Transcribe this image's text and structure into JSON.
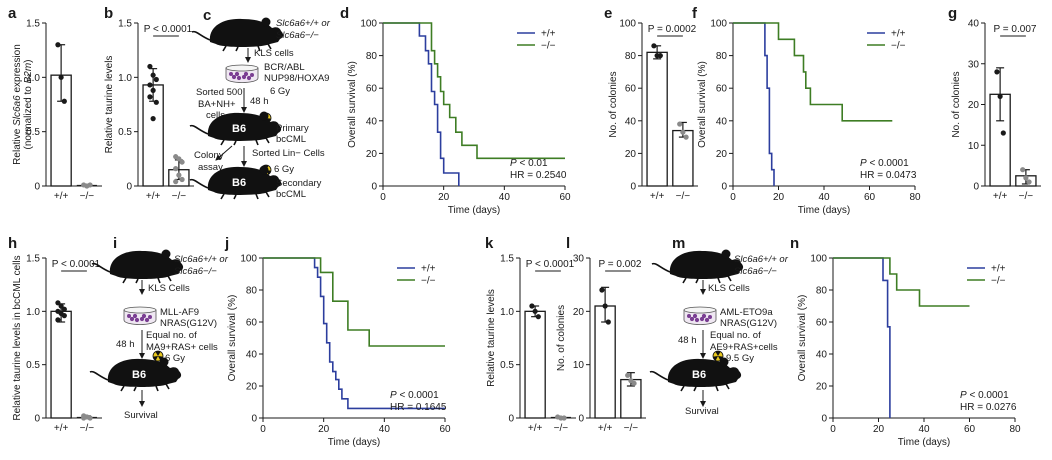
{
  "colors": {
    "wt": "#2c3e9e",
    "ko": "#3e7d24",
    "bar": "#1a1a1a",
    "dot_ko": "#8a8a8a",
    "dish": "#7a3e92"
  },
  "chart_data": [
    {
      "id": "a",
      "type": "bar",
      "panel_label": "a",
      "categories": [
        "+/+",
        "−/−"
      ],
      "values": [
        1.02,
        0.0
      ],
      "points": [
        [
          1.3,
          1.0,
          0.78
        ],
        [
          0.01,
          0.0,
          0.01
        ]
      ],
      "error": [
        [
          0.78,
          1.3
        ],
        [
          0,
          0.01
        ]
      ],
      "ylabel_pre": "Relative ",
      "ylabel_gene": "Slc6a6",
      "ylabel_post": " expression",
      "ylabel2_pre": "(normalized to ",
      "ylabel2_gene": "B2m",
      "ylabel2_post": ")",
      "ylim": [
        0,
        1.5
      ],
      "yticks": [
        "0",
        "0.5",
        "1.0",
        "1.5"
      ],
      "yticks_v": [
        0,
        0.5,
        1.0,
        1.5
      ]
    },
    {
      "id": "b",
      "type": "bar",
      "panel_label": "b",
      "categories": [
        "+/+",
        "−/−"
      ],
      "values": [
        0.93,
        0.15
      ],
      "points": [
        [
          1.1,
          1.02,
          0.98,
          0.93,
          0.88,
          0.77,
          0.82,
          0.62
        ],
        [
          0.27,
          0.25,
          0.22,
          0.16,
          0.1,
          0.06,
          0.04
        ]
      ],
      "error": [
        [
          0.78,
          1.08
        ],
        [
          0.06,
          0.24
        ]
      ],
      "ylabel": "Relative taurine  levels",
      "pvalue": "P < 0.0001",
      "ylim": [
        0,
        1.5
      ],
      "yticks": [
        "0",
        "0.5",
        "1.0",
        "1.5"
      ],
      "yticks_v": [
        0,
        0.5,
        1.0,
        1.5
      ]
    },
    {
      "id": "d",
      "type": "line",
      "panel_label": "d",
      "xlabel": "Time (days)",
      "ylabel": "Overall survival (%)",
      "xlim": [
        0,
        60
      ],
      "ylim": [
        0,
        100
      ],
      "xticks": [
        "0",
        "20",
        "40",
        "60"
      ],
      "xticks_v": [
        0,
        20,
        40,
        60
      ],
      "yticks": [
        "0",
        "20",
        "40",
        "60",
        "80",
        "100"
      ],
      "yticks_v": [
        0,
        20,
        40,
        60,
        80,
        100
      ],
      "series": [
        {
          "name": "+/+",
          "steps": [
            [
              0,
              100
            ],
            [
              12,
              100
            ],
            [
              12,
              92
            ],
            [
              14,
              92
            ],
            [
              14,
              83
            ],
            [
              15,
              83
            ],
            [
              15,
              75
            ],
            [
              16,
              75
            ],
            [
              16,
              58
            ],
            [
              17,
              58
            ],
            [
              17,
              50
            ],
            [
              18,
              50
            ],
            [
              18,
              33
            ],
            [
              19,
              33
            ],
            [
              19,
              17
            ],
            [
              20,
              17
            ],
            [
              20,
              8
            ],
            [
              25,
              8
            ],
            [
              25,
              0
            ]
          ]
        },
        {
          "name": "−/−",
          "steps": [
            [
              0,
              100
            ],
            [
              16,
              100
            ],
            [
              16,
              83
            ],
            [
              17,
              83
            ],
            [
              17,
              75
            ],
            [
              18,
              75
            ],
            [
              18,
              67
            ],
            [
              19,
              67
            ],
            [
              19,
              58
            ],
            [
              20,
              58
            ],
            [
              20,
              50
            ],
            [
              22,
              50
            ],
            [
              22,
              42
            ],
            [
              24,
              42
            ],
            [
              24,
              33
            ],
            [
              26,
              33
            ],
            [
              26,
              25
            ],
            [
              31,
              25
            ],
            [
              31,
              17
            ],
            [
              60,
              17
            ]
          ]
        }
      ],
      "legend": [
        "+/+",
        "−/−"
      ],
      "annot1": "P < 0.01",
      "annot2": "HR = 0.2540"
    },
    {
      "id": "e",
      "type": "bar",
      "panel_label": "e",
      "categories": [
        "+/+",
        "−/−"
      ],
      "values": [
        82,
        34
      ],
      "points": [
        [
          86,
          80,
          80
        ],
        [
          38,
          33,
          30
        ]
      ],
      "error": [
        [
          78,
          86
        ],
        [
          30,
          39
        ]
      ],
      "ylabel": "No. of colonies",
      "pvalue": "P = 0.0002",
      "ylim": [
        0,
        100
      ],
      "yticks": [
        "0",
        "20",
        "40",
        "60",
        "80",
        "100"
      ],
      "yticks_v": [
        0,
        20,
        40,
        60,
        80,
        100
      ]
    },
    {
      "id": "f",
      "type": "line",
      "panel_label": "f",
      "xlabel": "Time (days)",
      "ylabel": "Overall survival (%)",
      "xlim": [
        0,
        80
      ],
      "ylim": [
        0,
        100
      ],
      "xticks": [
        "0",
        "20",
        "40",
        "60",
        "80"
      ],
      "xticks_v": [
        0,
        20,
        40,
        60,
        80
      ],
      "yticks": [
        "0",
        "20",
        "40",
        "60",
        "80",
        "100"
      ],
      "yticks_v": [
        0,
        20,
        40,
        60,
        80,
        100
      ],
      "series": [
        {
          "name": "+/+",
          "steps": [
            [
              0,
              100
            ],
            [
              14,
              100
            ],
            [
              14,
              80
            ],
            [
              15,
              80
            ],
            [
              15,
              60
            ],
            [
              16,
              60
            ],
            [
              16,
              20
            ],
            [
              17,
              20
            ],
            [
              17,
              10
            ],
            [
              18,
              10
            ],
            [
              18,
              0
            ]
          ]
        },
        {
          "name": "−/−",
          "steps": [
            [
              0,
              100
            ],
            [
              20,
              100
            ],
            [
              20,
              90
            ],
            [
              27,
              90
            ],
            [
              27,
              80
            ],
            [
              31,
              80
            ],
            [
              31,
              70
            ],
            [
              32,
              70
            ],
            [
              32,
              60
            ],
            [
              34,
              60
            ],
            [
              34,
              50
            ],
            [
              48,
              50
            ],
            [
              48,
              40
            ],
            [
              70,
              40
            ]
          ]
        }
      ],
      "legend": [
        "+/+",
        "−/−"
      ],
      "annot1": "P < 0.0001",
      "annot2": "HR = 0.0473"
    },
    {
      "id": "g",
      "type": "bar",
      "panel_label": "g",
      "categories": [
        "+/+",
        "−/−"
      ],
      "values": [
        22.5,
        2.5
      ],
      "points": [
        [
          28,
          22,
          13
        ],
        [
          4,
          2,
          1
        ]
      ],
      "error": [
        [
          16,
          29
        ],
        [
          0.5,
          4
        ]
      ],
      "ylabel": "No. of colonies",
      "pvalue": "P = 0.007",
      "ylim": [
        0,
        40
      ],
      "yticks": [
        "0",
        "10",
        "20",
        "30",
        "40"
      ],
      "yticks_v": [
        0,
        10,
        20,
        30,
        40
      ]
    },
    {
      "id": "h",
      "type": "bar",
      "panel_label": "h",
      "categories": [
        "+/+",
        "−/−"
      ],
      "values": [
        1.0,
        0.0
      ],
      "points": [
        [
          1.08,
          1.05,
          1.02,
          1.0,
          0.98,
          0.96,
          0.92
        ],
        [
          0.02,
          0.01,
          0.0,
          0.0,
          0.01
        ]
      ],
      "error": [
        [
          0.9,
          1.07
        ],
        [
          0,
          0.02
        ]
      ],
      "ylabel": "Relative taurine  levels in bcCML cells",
      "pvalue": "P < 0.0001",
      "ylim": [
        0,
        1.5
      ],
      "yticks": [
        "0",
        "0.5",
        "1.0",
        "1.5"
      ],
      "yticks_v": [
        0,
        0.5,
        1.0,
        1.5
      ]
    },
    {
      "id": "j",
      "type": "line",
      "panel_label": "j",
      "xlabel": "Time (days)",
      "ylabel": "Overall survival (%)",
      "xlim": [
        0,
        60
      ],
      "ylim": [
        0,
        100
      ],
      "xticks": [
        "0",
        "20",
        "40",
        "60"
      ],
      "xticks_v": [
        0,
        20,
        40,
        60
      ],
      "yticks": [
        "0",
        "20",
        "40",
        "60",
        "80",
        "100"
      ],
      "yticks_v": [
        0,
        20,
        40,
        60,
        80,
        100
      ],
      "series": [
        {
          "name": "+/+",
          "steps": [
            [
              0,
              100
            ],
            [
              17,
              100
            ],
            [
              17,
              94
            ],
            [
              18,
              94
            ],
            [
              18,
              88
            ],
            [
              19,
              88
            ],
            [
              19,
              76
            ],
            [
              20,
              76
            ],
            [
              20,
              59
            ],
            [
              21,
              59
            ],
            [
              21,
              47
            ],
            [
              22,
              47
            ],
            [
              22,
              35
            ],
            [
              23,
              35
            ],
            [
              23,
              29
            ],
            [
              24,
              29
            ],
            [
              24,
              24
            ],
            [
              25,
              24
            ],
            [
              25,
              18
            ],
            [
              26,
              18
            ],
            [
              26,
              12
            ],
            [
              28,
              12
            ],
            [
              28,
              6
            ],
            [
              60,
              6
            ]
          ]
        },
        {
          "name": "−/−",
          "steps": [
            [
              0,
              100
            ],
            [
              19,
              100
            ],
            [
              19,
              91
            ],
            [
              23,
              91
            ],
            [
              23,
              73
            ],
            [
              28,
              73
            ],
            [
              28,
              55
            ],
            [
              35,
              55
            ],
            [
              35,
              45
            ],
            [
              60,
              45
            ]
          ]
        }
      ],
      "legend": [
        "+/+",
        "−/−"
      ],
      "annot1": "P < 0.0001",
      "annot2": "HR = 0.1645"
    },
    {
      "id": "k",
      "type": "bar",
      "panel_label": "k",
      "categories": [
        "+/+",
        "−/−"
      ],
      "values": [
        1.0,
        0.0
      ],
      "points": [
        [
          1.05,
          1.0,
          0.95
        ],
        [
          0.01,
          0.0,
          0.0
        ]
      ],
      "error": [
        [
          0.95,
          1.05
        ],
        [
          0,
          0.01
        ]
      ],
      "ylabel": "Relative taurine  levels",
      "pvalue": "P < 0.0001",
      "ylim": [
        0,
        1.5
      ],
      "yticks": [
        "0",
        "0.5",
        "1.0",
        "1.5"
      ],
      "yticks_v": [
        0,
        0.5,
        1.0,
        1.5
      ]
    },
    {
      "id": "l",
      "type": "bar",
      "panel_label": "l",
      "categories": [
        "+/+",
        "−/−"
      ],
      "values": [
        21,
        7.2
      ],
      "points": [
        [
          24,
          21,
          18
        ],
        [
          8,
          7,
          6.5
        ]
      ],
      "error": [
        [
          18,
          24.5
        ],
        [
          6,
          8.5
        ]
      ],
      "ylabel": "No. of colonies",
      "pvalue": "P = 0.002",
      "ylim": [
        0,
        30
      ],
      "yticks": [
        "0",
        "10",
        "20",
        "30"
      ],
      "yticks_v": [
        0,
        10,
        20,
        30
      ]
    },
    {
      "id": "n",
      "type": "line",
      "panel_label": "n",
      "xlabel": "Time (days)",
      "ylabel": "Overall survival (%)",
      "xlim": [
        0,
        80
      ],
      "ylim": [
        0,
        100
      ],
      "xticks": [
        "0",
        "20",
        "40",
        "60",
        "80"
      ],
      "xticks_v": [
        0,
        20,
        40,
        60,
        80
      ],
      "yticks": [
        "0",
        "20",
        "40",
        "60",
        "80",
        "100"
      ],
      "yticks_v": [
        0,
        20,
        40,
        60,
        80,
        100
      ],
      "series": [
        {
          "name": "+/+",
          "steps": [
            [
              0,
              100
            ],
            [
              22,
              100
            ],
            [
              22,
              86
            ],
            [
              24,
              86
            ],
            [
              24,
              57
            ],
            [
              25,
              57
            ],
            [
              25,
              0
            ]
          ]
        },
        {
          "name": "−/−",
          "steps": [
            [
              0,
              100
            ],
            [
              25,
              100
            ],
            [
              25,
              90
            ],
            [
              28,
              90
            ],
            [
              28,
              80
            ],
            [
              38,
              80
            ],
            [
              38,
              70
            ],
            [
              60,
              70
            ]
          ]
        }
      ],
      "legend": [
        "+/+",
        "−/−"
      ],
      "annot1": "P < 0.0001",
      "annot2": "HR = 0.0276"
    }
  ],
  "schematic_c": {
    "panel_label": "c",
    "geno_line1": "Slc6a6+/+ or",
    "geno_line2": "Slc6a6−/−",
    "kls": "KLS cells",
    "constructs1": "BCR/ABL",
    "constructs2": "NUP98/HOXA9",
    "sorted1": "Sorted 500",
    "sorted2": "BA+NH+",
    "sorted3": "cells",
    "time": "48 h",
    "dose1": "6 Gy",
    "mouse": "B6",
    "primary1": "Primary",
    "primary2": "bcCML",
    "colony1": "Colony",
    "colony2": "assay",
    "sorted_lin": "Sorted Lin− Cells",
    "dose2": "6 Gy",
    "secondary1": "Secondary",
    "secondary2": "bcCML"
  },
  "schematic_i": {
    "panel_label": "i",
    "geno_line1": "Slc6a6+/+ or",
    "geno_line2": "Slc6a6−/−",
    "kls": "KLS Cells",
    "constructs1": "MLL-AF9",
    "constructs2": "NRAS(G12V)",
    "equal1": "Equal no. of",
    "equal2": "MA9+RAS+ cells",
    "time": "48 h",
    "dose": "6 Gy",
    "mouse": "B6",
    "outcome": "Survival"
  },
  "schematic_m": {
    "panel_label": "m",
    "geno_line1": "Slc6a6+/+ or",
    "geno_line2": "Slc6a6−/−",
    "kls": "KLS Cells",
    "constructs1": "AML-ETO9a",
    "constructs2": "NRAS(G12V)",
    "equal1": "Equal no. of",
    "equal2": "AE9+RAS+cells",
    "time": "48 h",
    "dose": "9.5 Gy",
    "mouse": "B6",
    "outcome": "Survival"
  }
}
